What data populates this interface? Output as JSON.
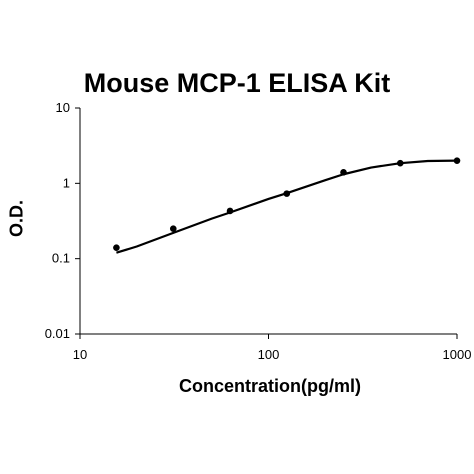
{
  "chart_data": {
    "type": "scatter",
    "title": "Mouse MCP-1 ELISA Kit",
    "xlabel": "Concentration(pg/ml)",
    "ylabel": "O.D.",
    "xscale": "log",
    "yscale": "log",
    "xlim": [
      10,
      1000
    ],
    "ylim": [
      0.01,
      10
    ],
    "xticks": [
      {
        "value": 10,
        "label": "10"
      },
      {
        "value": 100,
        "label": "100"
      },
      {
        "value": 1000,
        "label": "1000"
      }
    ],
    "yticks": [
      {
        "value": 0.01,
        "label": "0.01"
      },
      {
        "value": 0.1,
        "label": "0.1"
      },
      {
        "value": 1,
        "label": "1"
      },
      {
        "value": 10,
        "label": "10"
      }
    ],
    "grid": false,
    "series": [
      {
        "type": "scatter",
        "color": "#000000",
        "points": [
          {
            "x": 15.6,
            "y": 0.14
          },
          {
            "x": 31.25,
            "y": 0.25
          },
          {
            "x": 62.5,
            "y": 0.43
          },
          {
            "x": 125,
            "y": 0.73
          },
          {
            "x": 250,
            "y": 1.4
          },
          {
            "x": 500,
            "y": 1.85
          },
          {
            "x": 1000,
            "y": 2.0
          }
        ]
      },
      {
        "type": "line",
        "color": "#000000",
        "points": [
          {
            "x": 15.6,
            "y": 0.12
          },
          {
            "x": 20,
            "y": 0.145
          },
          {
            "x": 31.25,
            "y": 0.22
          },
          {
            "x": 50,
            "y": 0.34
          },
          {
            "x": 62.5,
            "y": 0.41
          },
          {
            "x": 100,
            "y": 0.62
          },
          {
            "x": 125,
            "y": 0.74
          },
          {
            "x": 200,
            "y": 1.1
          },
          {
            "x": 250,
            "y": 1.32
          },
          {
            "x": 350,
            "y": 1.62
          },
          {
            "x": 500,
            "y": 1.85
          },
          {
            "x": 700,
            "y": 1.98
          },
          {
            "x": 1000,
            "y": 2.0
          }
        ]
      }
    ]
  }
}
